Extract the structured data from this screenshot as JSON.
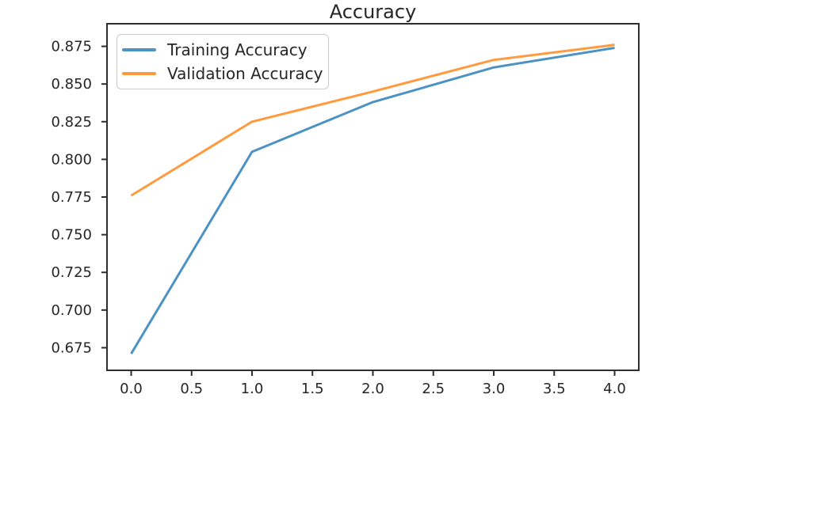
{
  "title": "Accuracy",
  "colors": {
    "training_line": "#4c92c3",
    "validation_line": "#ff9a3e",
    "axis": "#2e2e2e",
    "text": "#262626",
    "legend_border": "#cccccc",
    "background": "#ffffff"
  },
  "chart_data": {
    "type": "line",
    "title": "Accuracy",
    "x": [
      0,
      1,
      2,
      3,
      4
    ],
    "series": [
      {
        "name": "Training Accuracy",
        "color": "#4c92c3",
        "values": [
          0.671,
          0.805,
          0.838,
          0.861,
          0.874
        ]
      },
      {
        "name": "Validation Accuracy",
        "color": "#ff9a3e",
        "values": [
          0.776,
          0.825,
          0.845,
          0.866,
          0.876
        ]
      }
    ],
    "xlabel": "",
    "ylabel": "",
    "xlim": [
      -0.2,
      4.2
    ],
    "ylim": [
      0.66,
      0.89
    ],
    "x_ticks": [
      0.0,
      0.5,
      1.0,
      1.5,
      2.0,
      2.5,
      3.0,
      3.5,
      4.0
    ],
    "x_tick_labels": [
      "0.0",
      "0.5",
      "1.0",
      "1.5",
      "2.0",
      "2.5",
      "3.0",
      "3.5",
      "4.0"
    ],
    "y_ticks": [
      0.675,
      0.7,
      0.725,
      0.75,
      0.775,
      0.8,
      0.825,
      0.85,
      0.875
    ],
    "y_tick_labels": [
      "0.675",
      "0.700",
      "0.725",
      "0.750",
      "0.775",
      "0.800",
      "0.825",
      "0.850",
      "0.875"
    ],
    "grid": false,
    "legend_position": "upper left"
  }
}
